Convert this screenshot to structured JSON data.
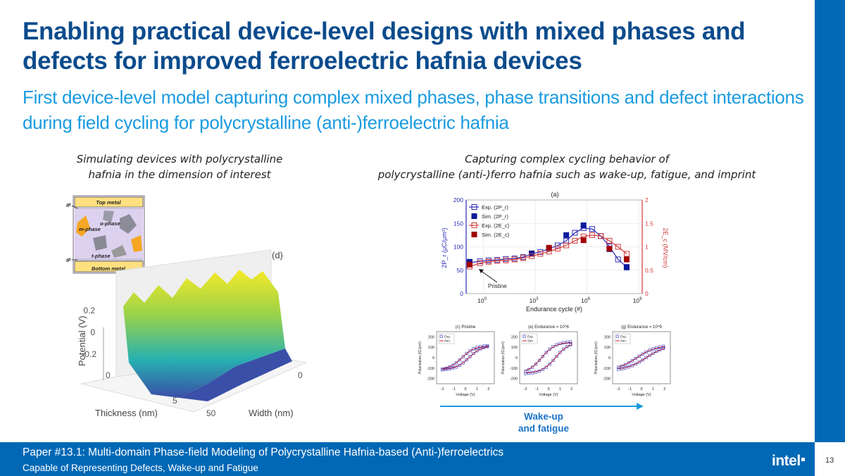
{
  "slide": {
    "title": "Enabling practical device-level designs with mixed phases and defects for improved ferroelectric hafnia devices",
    "subtitle": "First device-level model capturing complex mixed phases, phase transitions and defect interactions during field cycling for polycrystalline (anti-)ferroelectric hafnia",
    "page_number": "13"
  },
  "left": {
    "caption_line1": "Simulating devices with polycrystalline",
    "caption_line2": "hafnia in the dimension of interest",
    "schematic": {
      "top_metal": "Top metal",
      "bottom_metal": "Bottom metal",
      "o_phase": "o-phase",
      "m_phase": "m-phase",
      "t_phase": "t-phase",
      "if_top": "IF",
      "if_bottom": "IF"
    },
    "plot3d": {
      "panel": "(d)",
      "zlabel": "Potential (V)",
      "xlabel": "Thickness (nm)",
      "ylabel": "Width (nm)",
      "zticks": [
        "0.2",
        "0",
        "-0.2"
      ],
      "x_tick_0": "0",
      "x_tick_5": "5",
      "y_tick_0": "0",
      "y_tick_50": "50"
    }
  },
  "right": {
    "caption_line1": "Capturing complex cycling behavior of",
    "caption_line2": "polycrystalline (anti-)ferro hafnia such as wake-up, fatigue, and imprint",
    "annotation": "Pristine",
    "arrow_label_1": "Wake-up",
    "arrow_label_2": "and fatigue"
  },
  "chart_data": [
    {
      "type": "line",
      "panel": "(a)",
      "title": "",
      "xlabel": "Endurance cycle (#)",
      "ylabel": "2P_r (μC/μm²)",
      "ylabel_right": "2E_c (MV/cm)",
      "xscale": "log",
      "xticks": [
        "10^0",
        "10^3",
        "10^6",
        "10^9"
      ],
      "yticks_left": [
        "0",
        "50",
        "100",
        "150",
        "200"
      ],
      "yticks_right": [
        "0",
        "0.5",
        "1",
        "1.5",
        "2"
      ],
      "ylim": [
        0,
        200
      ],
      "ylim_right": [
        0,
        2
      ],
      "x_log10": [
        -0.8,
        -0.2,
        0.3,
        0.8,
        1.3,
        1.8,
        2.3,
        2.8,
        3.3,
        3.8,
        4.3,
        4.8,
        5.3,
        5.8,
        6.3,
        6.8,
        7.3,
        7.8,
        8.3
      ],
      "series": [
        {
          "name": "Exp. (2P_r)",
          "marker": "open-square",
          "color": "#2a2ab5",
          "axis": "left",
          "values": [
            66,
            69,
            71,
            72,
            74,
            75,
            78,
            85,
            89,
            96,
            103,
            113,
            130,
            140,
            138,
            123,
            101,
            73,
            57
          ]
        },
        {
          "name": "Sim. (2P_r)",
          "marker": "filled-square",
          "color": "#0a1a9a",
          "axis": "left",
          "points": [
            [
              -0.8,
              68
            ],
            [
              2.8,
              86
            ],
            [
              4.8,
              125
            ],
            [
              5.8,
              146
            ],
            [
              7.3,
              95
            ],
            [
              8.3,
              56
            ]
          ]
        },
        {
          "name": "Exp. (2E_c)",
          "marker": "open-square",
          "color": "#d23a3a",
          "axis": "right",
          "values": [
            0.58,
            0.65,
            0.68,
            0.7,
            0.71,
            0.73,
            0.76,
            0.8,
            0.85,
            0.9,
            0.96,
            1.03,
            1.13,
            1.22,
            1.25,
            1.23,
            1.13,
            1.0,
            0.85
          ]
        },
        {
          "name": "Sim. (2E_c)",
          "marker": "filled-square",
          "color": "#a00000",
          "axis": "right",
          "points": [
            [
              -0.8,
              0.62
            ],
            [
              3.8,
              0.98
            ],
            [
              5.8,
              1.14
            ],
            [
              7.3,
              0.96
            ],
            [
              8.3,
              0.73
            ]
          ]
        }
      ]
    },
    {
      "type": "line",
      "panel": "(c) Pristine",
      "xlabel": "Voltage (V)",
      "ylabel": "Polarization (fC/μm²)",
      "xticks": [
        "-2",
        "-1",
        "0",
        "1",
        "2"
      ],
      "yticks": [
        "200",
        "100",
        "0",
        "-100",
        "-200"
      ],
      "xlim": [
        -2.5,
        2.5
      ],
      "ylim": [
        -250,
        250
      ],
      "legend": [
        "Exp.",
        "Sim."
      ],
      "loop": {
        "pr": 30,
        "ec": 0.3,
        "ps": 115
      }
    },
    {
      "type": "line",
      "panel": "(e) Endurance = 10^6",
      "xlabel": "Voltage (V)",
      "ylabel": "Polarization (fC/μm²)",
      "xticks": [
        "-2",
        "-1",
        "0",
        "1",
        "2"
      ],
      "yticks": [
        "200",
        "100",
        "0",
        "-100",
        "-200"
      ],
      "xlim": [
        -2.5,
        2.5
      ],
      "ylim": [
        -250,
        250
      ],
      "legend": [
        "Exp.",
        "Sim."
      ],
      "loop": {
        "pr": 70,
        "ec": 0.6,
        "ps": 150
      }
    },
    {
      "type": "line",
      "panel": "(g) Endurance = 10^9",
      "xlabel": "Voltage (V)",
      "ylabel": "Polarization (fC/μm²)",
      "xticks": [
        "-2",
        "-1",
        "0",
        "1",
        "2"
      ],
      "yticks": [
        "200",
        "100",
        "0",
        "-100",
        "-200"
      ],
      "xlim": [
        -2.5,
        2.5
      ],
      "ylim": [
        -250,
        250
      ],
      "legend": [
        "Exp.",
        "Sim."
      ],
      "loop": {
        "pr": 28,
        "ec": 0.4,
        "ps": 120
      }
    }
  ],
  "footer": {
    "line1": "Paper #13.1: Multi-domain Phase-field Modeling of Polycrystalline Hafnia-based (Anti-)ferroelectrics",
    "line2": "Capable of Representing Defects, Wake-up and Fatigue",
    "logo": "intel"
  },
  "colors": {
    "title": "#0b4b8c",
    "subtitle": "#1a9be0",
    "brand_blue": "#0068b5",
    "exp_2pr": "#2a2ab5",
    "exp_2ec": "#d23a3a"
  }
}
